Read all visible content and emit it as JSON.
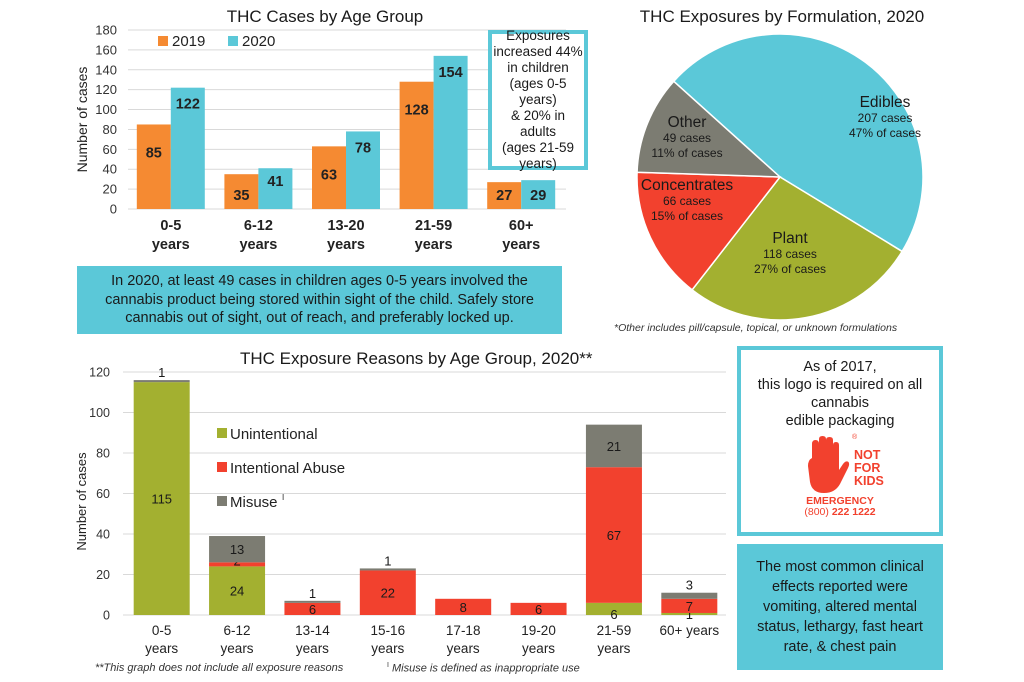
{
  "chart_data": [
    {
      "id": "cases_by_age",
      "type": "bar",
      "title": "THC Cases by Age Group",
      "xlabel": "",
      "ylabel": "Number of cases",
      "ylim": [
        0,
        180
      ],
      "yticks": [
        0,
        20,
        40,
        60,
        80,
        100,
        120,
        140,
        160,
        180
      ],
      "grid": true,
      "legend_position": "top-left",
      "categories": [
        [
          "0-5",
          "years"
        ],
        [
          "6-12",
          "years"
        ],
        [
          "13-20",
          "years"
        ],
        [
          "21-59",
          "years"
        ],
        [
          "60+",
          "years"
        ]
      ],
      "series": [
        {
          "name": "2019",
          "color": "#f58a32",
          "values": [
            85,
            35,
            63,
            128,
            27
          ]
        },
        {
          "name": "2020",
          "color": "#5bc8d8",
          "values": [
            122,
            41,
            78,
            154,
            29
          ]
        }
      ]
    },
    {
      "id": "exposures_by_formulation",
      "type": "pie",
      "title": "THC Exposures by Formulation, 2020",
      "slices": [
        {
          "label": "Edibles",
          "cases": 207,
          "cases_text": "207 cases",
          "percent": 47,
          "percent_text": "47% of cases",
          "color": "#5bc8d8"
        },
        {
          "label": "Plant",
          "cases": 118,
          "cases_text": "118 cases",
          "percent": 27,
          "percent_text": "27% of cases",
          "color": "#a3b030"
        },
        {
          "label": "Concentrates",
          "cases": 66,
          "cases_text": "66 cases",
          "percent": 15,
          "percent_text": "15% of cases",
          "color": "#f2412e"
        },
        {
          "label": "Other",
          "cases": 49,
          "cases_text": "49 cases",
          "percent": 11,
          "percent_text": "11% of cases",
          "color": "#7c7c72"
        }
      ],
      "footnote": "*Other includes pill/capsule, topical, or unknown formulations"
    },
    {
      "id": "exposure_reasons_by_age",
      "type": "bar",
      "stacked": true,
      "title": "THC Exposure Reasons by Age Group, 2020**",
      "xlabel": "",
      "ylabel": "Number of cases",
      "ylim": [
        0,
        120
      ],
      "yticks": [
        0,
        20,
        40,
        60,
        80,
        100,
        120
      ],
      "grid": true,
      "legend_position": "top-left",
      "categories": [
        [
          "0-5",
          "years"
        ],
        [
          "6-12",
          "years"
        ],
        [
          "13-14",
          "years"
        ],
        [
          "15-16",
          "years"
        ],
        [
          "17-18",
          "years"
        ],
        [
          "19-20",
          "years"
        ],
        [
          "21-59",
          "years"
        ],
        [
          "60+ years"
        ]
      ],
      "series": [
        {
          "name": "Unintentional",
          "color": "#a3b030",
          "values": [
            115,
            24,
            0,
            0,
            0,
            0,
            6,
            1
          ]
        },
        {
          "name": "Intentional Abuse",
          "color": "#f2412e",
          "values": [
            0,
            2,
            6,
            22,
            8,
            6,
            67,
            7
          ]
        },
        {
          "name": "Misuse",
          "color": "#7c7c72",
          "values": [
            1,
            13,
            1,
            1,
            0,
            0,
            21,
            3
          ]
        }
      ],
      "legend_superscript": "I",
      "footnotes": [
        "**This graph does not include all exposure reasons",
        "Misuse is defined as inappropriate use"
      ],
      "footnote_marker": "I"
    }
  ],
  "callouts": {
    "exposures_increase": [
      "Exposures",
      "increased 44%",
      "in children",
      "(ages 0-5 years)",
      "& 20% in adults",
      "(ages 21-59",
      "years)"
    ],
    "storage_tip": [
      "In 2020, at least 49 cases in children ages 0-5 years involved the",
      "cannabis product being stored within sight of the child. Safely store",
      "cannabis out of sight, out of reach, and preferably locked up."
    ],
    "logo_box": {
      "lines": [
        "As of 2017,",
        "this logo is required on all",
        "cannabis",
        "edible packaging"
      ],
      "logo_text": [
        "NOT",
        "FOR",
        "KIDS"
      ],
      "emergency_label": "EMERGENCY",
      "phone_area": "(800)",
      "phone_number": "222 1222",
      "registered_mark": "®",
      "color": "#f2412e"
    },
    "clinical_effects": [
      "The most common clinical",
      "effects reported were",
      "vomiting, altered mental",
      "status, lethargy, fast heart",
      "rate, & chest pain"
    ]
  }
}
